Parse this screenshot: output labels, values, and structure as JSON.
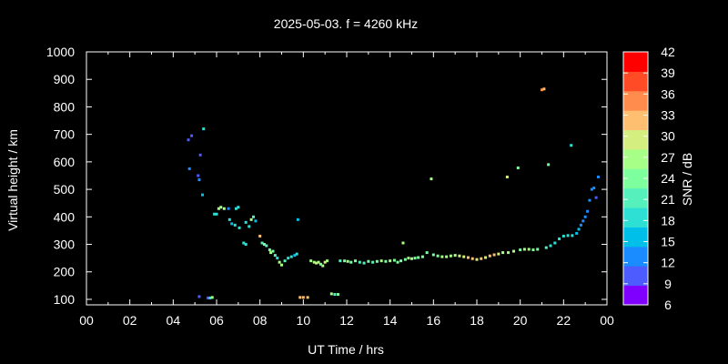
{
  "chart_data": {
    "type": "scatter",
    "title": "2025-05-03. f = 4260 kHz",
    "xlabel": "UT Time / hrs",
    "ylabel": "Virtual height / km",
    "xlim": [
      0,
      24
    ],
    "ylim": [
      80,
      1000
    ],
    "x_ticks": [
      "00",
      "02",
      "04",
      "06",
      "08",
      "10",
      "12",
      "14",
      "16",
      "18",
      "20",
      "22",
      "00"
    ],
    "y_ticks": [
      "100",
      "200",
      "300",
      "400",
      "500",
      "600",
      "700",
      "800",
      "900",
      "1000"
    ],
    "colorbar": {
      "label": "SNR / dB",
      "ticks": [
        "6",
        "9",
        "12",
        "15",
        "18",
        "21",
        "24",
        "27",
        "30",
        "33",
        "36",
        "39",
        "42"
      ],
      "colors": [
        "#8000ff",
        "#4c5cff",
        "#1a8cff",
        "#00bfe8",
        "#2ee0d4",
        "#55f0bb",
        "#7dff9e",
        "#a8ff88",
        "#d4ee80",
        "#ffbf70",
        "#ff8c4c",
        "#ff4c26",
        "#ff0000"
      ]
    },
    "series": [
      {
        "points": [
          [
            4.7,
            680,
            10
          ],
          [
            4.85,
            695,
            10
          ],
          [
            4.75,
            575,
            12
          ],
          [
            5.4,
            720,
            18
          ],
          [
            5.15,
            550,
            10
          ],
          [
            5.25,
            625,
            10
          ],
          [
            5.2,
            535,
            12
          ],
          [
            5.35,
            480,
            15
          ],
          [
            5.6,
            105,
            10
          ],
          [
            5.7,
            105,
            18
          ],
          [
            5.8,
            107,
            27
          ],
          [
            5.2,
            110,
            10
          ],
          [
            5.9,
            410,
            18
          ],
          [
            6.0,
            410,
            18
          ],
          [
            6.1,
            430,
            27
          ],
          [
            6.2,
            435,
            27
          ],
          [
            6.35,
            430,
            27
          ],
          [
            6.55,
            430,
            12
          ],
          [
            6.9,
            430,
            18
          ],
          [
            7.0,
            435,
            18
          ],
          [
            6.6,
            390,
            18
          ],
          [
            6.7,
            375,
            15
          ],
          [
            6.85,
            370,
            18
          ],
          [
            7.05,
            360,
            18
          ],
          [
            7.35,
            380,
            18
          ],
          [
            7.5,
            365,
            18
          ],
          [
            7.6,
            390,
            27
          ],
          [
            7.7,
            400,
            21
          ],
          [
            7.8,
            385,
            15
          ],
          [
            7.25,
            305,
            18
          ],
          [
            7.35,
            300,
            18
          ],
          [
            8.0,
            330,
            33
          ],
          [
            8.1,
            305,
            21
          ],
          [
            8.2,
            300,
            24
          ],
          [
            8.3,
            295,
            21
          ],
          [
            8.45,
            280,
            24
          ],
          [
            8.5,
            270,
            27
          ],
          [
            8.6,
            275,
            24
          ],
          [
            8.7,
            260,
            21
          ],
          [
            8.8,
            250,
            18
          ],
          [
            8.9,
            235,
            27
          ],
          [
            9.0,
            225,
            27
          ],
          [
            9.15,
            240,
            21
          ],
          [
            9.3,
            250,
            18
          ],
          [
            9.45,
            255,
            18
          ],
          [
            9.6,
            260,
            15
          ],
          [
            9.7,
            265,
            18
          ],
          [
            9.75,
            390,
            15
          ],
          [
            9.85,
            107,
            33
          ],
          [
            10.0,
            107,
            33
          ],
          [
            10.2,
            107,
            33
          ],
          [
            10.35,
            240,
            27
          ],
          [
            10.5,
            235,
            27
          ],
          [
            10.6,
            232,
            30
          ],
          [
            10.7,
            235,
            27
          ],
          [
            10.8,
            228,
            24
          ],
          [
            10.9,
            222,
            27
          ],
          [
            11.0,
            235,
            30
          ],
          [
            11.1,
            240,
            27
          ],
          [
            11.3,
            120,
            27
          ],
          [
            11.45,
            118,
            21
          ],
          [
            11.6,
            118,
            24
          ],
          [
            11.7,
            240,
            21
          ],
          [
            11.9,
            240,
            24
          ],
          [
            12.05,
            238,
            27
          ],
          [
            12.2,
            235,
            24
          ],
          [
            12.4,
            240,
            24
          ],
          [
            12.6,
            235,
            21
          ],
          [
            12.8,
            232,
            21
          ],
          [
            13.0,
            238,
            24
          ],
          [
            13.2,
            235,
            21
          ],
          [
            13.4,
            238,
            24
          ],
          [
            13.6,
            240,
            27
          ],
          [
            13.8,
            238,
            24
          ],
          [
            14.0,
            240,
            27
          ],
          [
            14.2,
            242,
            24
          ],
          [
            14.35,
            235,
            24
          ],
          [
            14.5,
            240,
            24
          ],
          [
            14.6,
            305,
            27
          ],
          [
            14.7,
            245,
            24
          ],
          [
            14.85,
            250,
            27
          ],
          [
            15.0,
            248,
            27
          ],
          [
            15.15,
            250,
            24
          ],
          [
            15.3,
            252,
            24
          ],
          [
            15.5,
            255,
            24
          ],
          [
            15.7,
            270,
            24
          ],
          [
            15.9,
            538,
            27
          ],
          [
            16.0,
            262,
            24
          ],
          [
            16.2,
            258,
            24
          ],
          [
            16.4,
            255,
            27
          ],
          [
            16.6,
            255,
            27
          ],
          [
            16.8,
            258,
            27
          ],
          [
            17.0,
            260,
            27
          ],
          [
            17.2,
            258,
            30
          ],
          [
            17.4,
            255,
            30
          ],
          [
            17.6,
            252,
            33
          ],
          [
            17.8,
            248,
            33
          ],
          [
            18.0,
            245,
            30
          ],
          [
            18.2,
            248,
            33
          ],
          [
            18.4,
            252,
            30
          ],
          [
            18.6,
            258,
            33
          ],
          [
            18.8,
            262,
            33
          ],
          [
            19.0,
            265,
            30
          ],
          [
            19.2,
            270,
            27
          ],
          [
            19.4,
            545,
            30
          ],
          [
            19.45,
            270,
            27
          ],
          [
            19.7,
            275,
            27
          ],
          [
            19.9,
            578,
            24
          ],
          [
            20.0,
            280,
            24
          ],
          [
            20.2,
            282,
            27
          ],
          [
            20.4,
            282,
            27
          ],
          [
            20.6,
            280,
            24
          ],
          [
            20.8,
            282,
            24
          ],
          [
            21.0,
            862,
            36
          ],
          [
            21.1,
            865,
            33
          ],
          [
            21.2,
            288,
            21
          ],
          [
            21.3,
            590,
            24
          ],
          [
            21.4,
            295,
            18
          ],
          [
            21.6,
            305,
            18
          ],
          [
            21.8,
            320,
            18
          ],
          [
            22.0,
            330,
            18
          ],
          [
            22.2,
            332,
            18
          ],
          [
            22.35,
            660,
            18
          ],
          [
            22.4,
            332,
            18
          ],
          [
            22.6,
            340,
            15
          ],
          [
            22.7,
            355,
            15
          ],
          [
            22.8,
            370,
            12
          ],
          [
            22.9,
            385,
            12
          ],
          [
            23.0,
            400,
            12
          ],
          [
            23.1,
            420,
            12
          ],
          [
            23.2,
            460,
            12
          ],
          [
            23.3,
            500,
            12
          ],
          [
            23.4,
            505,
            12
          ],
          [
            23.5,
            470,
            10
          ],
          [
            23.6,
            545,
            12
          ]
        ]
      }
    ]
  }
}
